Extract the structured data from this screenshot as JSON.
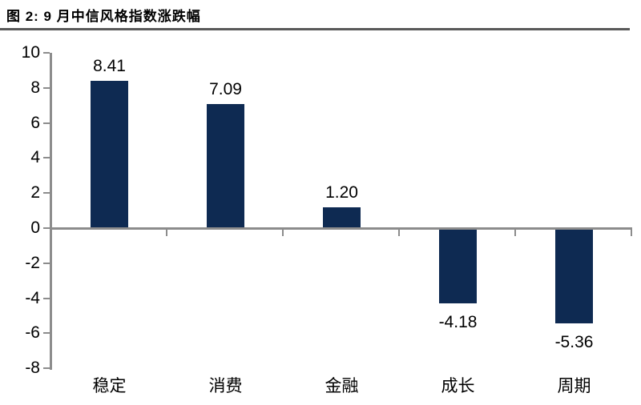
{
  "header": {
    "title": "图 2: 9 月中信风格指数涨跌幅"
  },
  "chart_data": {
    "type": "bar",
    "title": "图 2: 9 月中信风格指数涨跌幅",
    "categories": [
      "稳定",
      "消费",
      "金融",
      "成长",
      "周期"
    ],
    "values": [
      8.41,
      7.09,
      1.2,
      -4.18,
      -5.36
    ],
    "value_labels": [
      "8.41",
      "7.09",
      "1.20",
      "-4.18",
      "-5.36"
    ],
    "ylim": [
      -8,
      10
    ],
    "yticks": [
      10,
      8,
      6,
      4,
      2,
      0,
      -2,
      -4,
      -6,
      -8
    ],
    "grid": false,
    "legend": "none",
    "xlabel": "",
    "ylabel": "",
    "bar_color": "#0E2A52",
    "axis_color": "#8C8C8C",
    "rule_color": "#595959",
    "label_color": "#000000"
  }
}
